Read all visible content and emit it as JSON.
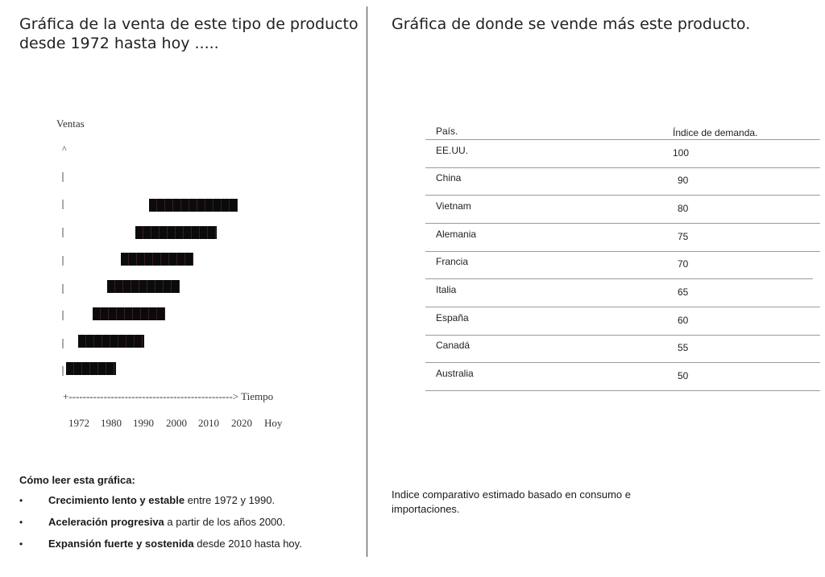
{
  "left": {
    "title_line1": "Gráfica de la venta de este tipo de producto",
    "title_line2": "desde 1972 hasta hoy .....",
    "legend": {
      "heading": "Cómo leer esta gráfica:",
      "items": [
        {
          "bold": "Crecimiento lento y estable",
          "rest": " entre 1972 y 1990."
        },
        {
          "bold": "Aceleración progresiva",
          "rest": " a partir de los años 2000."
        },
        {
          "bold": "Expansión fuerte y sostenida",
          "rest": " desde 2010 hasta hoy."
        }
      ],
      "bullet": "•"
    }
  },
  "chart_data": {
    "type": "bar",
    "ylabel": "Ventas",
    "y_arrow": "^",
    "xlabel": "Tiempo",
    "x_axis_text": "+-----------------------------------------------> Tiempo",
    "categories": [
      "1972",
      "1980",
      "1990",
      "2000",
      "2010",
      "2020",
      "Hoy"
    ],
    "bars": [
      {
        "start": 0.0,
        "end": 0.28
      },
      {
        "start": 0.07,
        "end": 0.44
      },
      {
        "start": 0.15,
        "end": 0.56
      },
      {
        "start": 0.23,
        "end": 0.64
      },
      {
        "start": 0.31,
        "end": 0.72
      },
      {
        "start": 0.39,
        "end": 0.85
      },
      {
        "start": 0.47,
        "end": 0.97
      }
    ],
    "bar_color": "#111111"
  },
  "right": {
    "title": "Gráfica de donde se vende más este producto.",
    "table": {
      "headers": [
        "País.",
        "Índice de demanda."
      ],
      "rows": [
        [
          "EE.UU.",
          "100"
        ],
        [
          "China",
          "90"
        ],
        [
          "Vietnam",
          "80"
        ],
        [
          "Alemania",
          "75"
        ],
        [
          "Francia",
          "70"
        ],
        [
          "Italia",
          "65"
        ],
        [
          "España",
          "60"
        ],
        [
          "Canadá",
          "55"
        ],
        [
          "Australia",
          "50"
        ]
      ]
    },
    "note_line1": "Indice comparativo estimado basado en consumo e",
    "note_line2": "importaciones."
  }
}
